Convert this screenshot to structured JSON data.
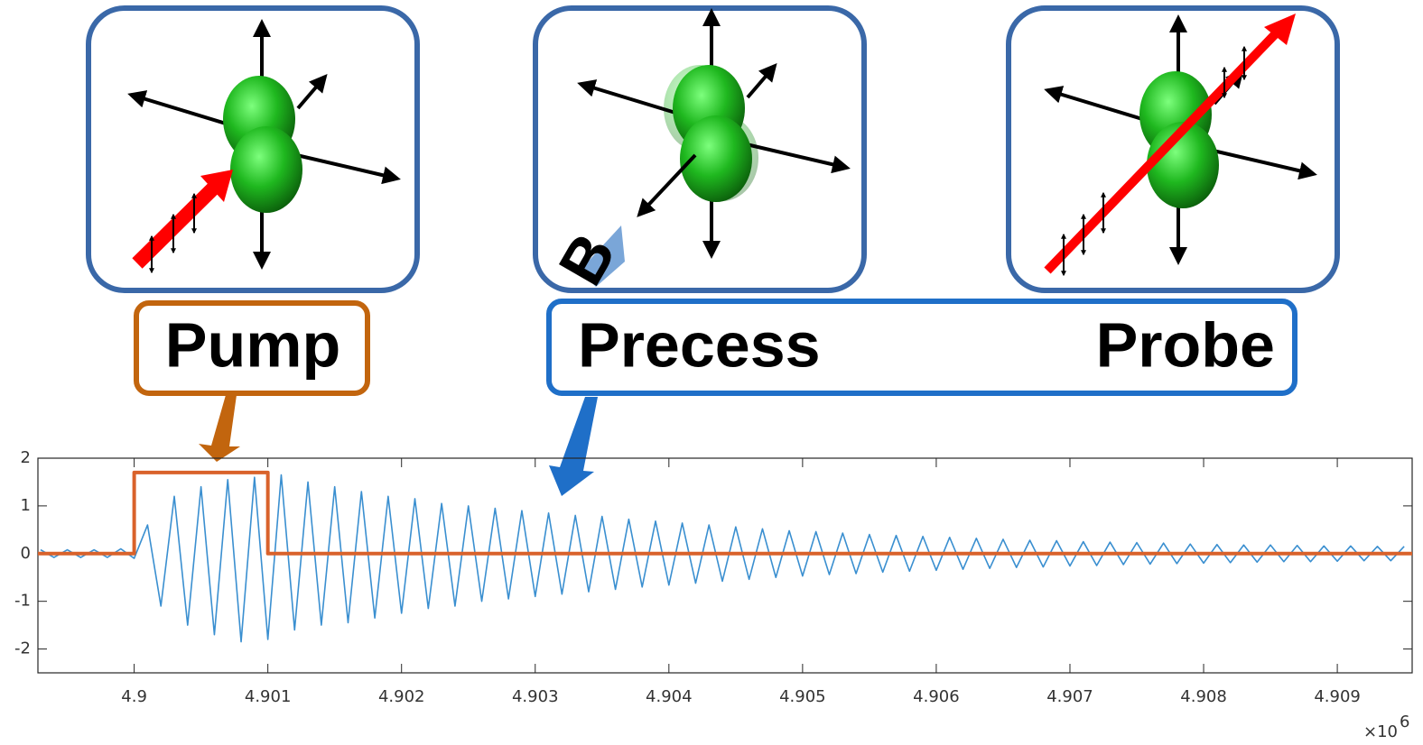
{
  "labels": {
    "pump": "Pump",
    "precess": "Precess",
    "probe": "Probe",
    "field": "B"
  },
  "chart_data": {
    "type": "line",
    "x_multiplier": {
      "base": "×10",
      "exponent": "6"
    },
    "xlim": [
      4.89928,
      4.90956
    ],
    "ylim": [
      -2.5,
      2
    ],
    "xticks": [
      4.9,
      4.901,
      4.902,
      4.903,
      4.904,
      4.905,
      4.906,
      4.907,
      4.908,
      4.909
    ],
    "yticks": [
      2,
      1,
      0,
      -1,
      -2
    ],
    "series": [
      {
        "color": "#3a8fd0",
        "x": [
          4.8993,
          4.8994,
          4.8995,
          4.8996,
          4.8997,
          4.8998,
          4.8999,
          4.9,
          4.9001,
          4.9002,
          4.9003,
          4.9004,
          4.9005,
          4.9006,
          4.9007,
          4.9008,
          4.9009,
          4.901,
          4.9011,
          4.9012,
          4.9013,
          4.9014,
          4.9015,
          4.9016,
          4.9017,
          4.9018,
          4.9019,
          4.902,
          4.9021,
          4.9022,
          4.9023,
          4.9024,
          4.9025,
          4.9026,
          4.9027,
          4.9028,
          4.9029,
          4.903,
          4.9031,
          4.9032,
          4.9033,
          4.9034,
          4.9035,
          4.9036,
          4.9037,
          4.9038,
          4.9039,
          4.904,
          4.9041,
          4.9042,
          4.9043,
          4.9044,
          4.9045,
          4.9046,
          4.9047,
          4.9048,
          4.9049,
          4.905,
          4.9051,
          4.9052,
          4.9053,
          4.9054,
          4.9055,
          4.9056,
          4.9057,
          4.9058,
          4.9059,
          4.906,
          4.9061,
          4.9062,
          4.9063,
          4.9064,
          4.9065,
          4.9066,
          4.9067,
          4.9068,
          4.9069,
          4.907,
          4.9071,
          4.9072,
          4.9073,
          4.9074,
          4.9075,
          4.9076,
          4.9077,
          4.9078,
          4.9079,
          4.908,
          4.9081,
          4.9082,
          4.9083,
          4.9084,
          4.9085,
          4.9086,
          4.9087,
          4.9088,
          4.9089,
          4.909,
          4.9091,
          4.9092,
          4.9093,
          4.9094,
          4.9095
        ],
        "values": [
          0.08,
          -0.08,
          0.08,
          -0.08,
          0.08,
          -0.08,
          0.1,
          -0.1,
          0.6,
          -1.1,
          1.2,
          -1.5,
          1.4,
          -1.7,
          1.55,
          -1.85,
          1.6,
          -1.8,
          1.65,
          -1.6,
          1.5,
          -1.5,
          1.4,
          -1.45,
          1.3,
          -1.35,
          1.2,
          -1.25,
          1.15,
          -1.15,
          1.05,
          -1.1,
          1.0,
          -1.0,
          0.95,
          -0.95,
          0.9,
          -0.9,
          0.85,
          -0.85,
          0.8,
          -0.8,
          0.78,
          -0.75,
          0.72,
          -0.7,
          0.68,
          -0.66,
          0.64,
          -0.62,
          0.6,
          -0.58,
          0.56,
          -0.54,
          0.52,
          -0.5,
          0.48,
          -0.47,
          0.46,
          -0.44,
          0.43,
          -0.42,
          0.4,
          -0.39,
          0.38,
          -0.37,
          0.36,
          -0.35,
          0.34,
          -0.33,
          0.32,
          -0.31,
          0.3,
          -0.29,
          0.28,
          -0.28,
          0.27,
          -0.26,
          0.25,
          -0.25,
          0.24,
          -0.23,
          0.23,
          -0.22,
          0.22,
          -0.21,
          0.2,
          -0.2,
          0.19,
          -0.19,
          0.18,
          -0.18,
          0.18,
          -0.17,
          0.17,
          -0.17,
          0.16,
          -0.16,
          0.16,
          -0.15,
          0.15,
          -0.15,
          0.15
        ]
      },
      {
        "color": "#d9622b",
        "x": [
          4.89928,
          4.9,
          4.9,
          4.901,
          4.901,
          4.90956
        ],
        "values": [
          0,
          0,
          1.7,
          1.7,
          0,
          0
        ]
      }
    ]
  }
}
